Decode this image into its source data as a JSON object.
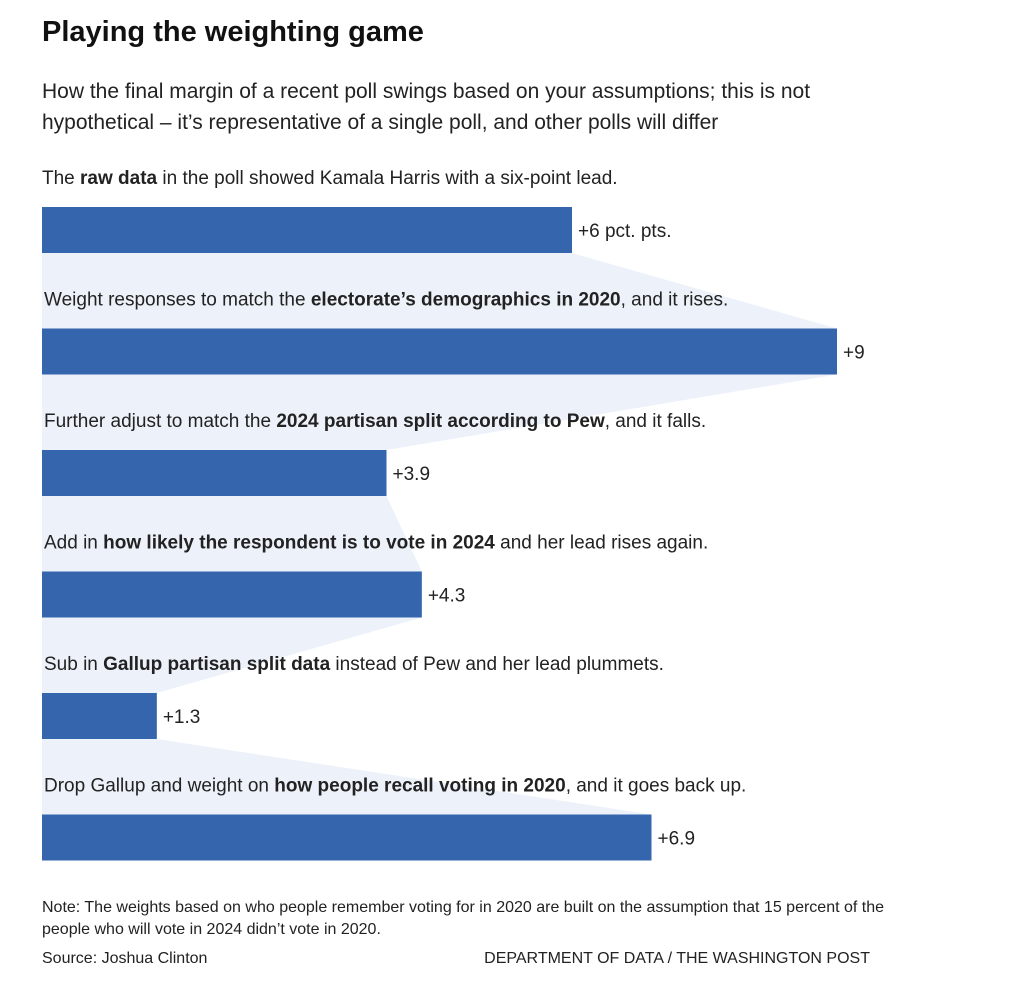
{
  "title": "Playing the weighting game",
  "subtitle": "How the final margin of a recent poll swings based on your assumptions; this is not hypothetical – it’s representative of a single poll, and other polls will differ",
  "note": "Note: The weights based on who people remember voting for in 2020 are built on the assumption that 15 percent of the people who will vote in 2024 didn’t vote in 2020.",
  "source": "Source: Joshua Clinton",
  "credit": "DEPARTMENT OF DATA / THE WASHINGTON POST",
  "colors": {
    "bar": "#3565ad",
    "connector": "#edf2fa"
  },
  "chart_data": {
    "type": "bar",
    "orientation": "horizontal",
    "xlim": [
      0,
      9
    ],
    "categories": [
      [
        {
          "text": "The "
        },
        {
          "text": "raw data",
          "bold": true
        },
        {
          "text": " in the poll showed Kamala Harris with a  six-point lead."
        }
      ],
      [
        {
          "text": "Weight responses to match the "
        },
        {
          "text": "electorate’s demographics in 2020",
          "bold": true
        },
        {
          "text": ", and it rises."
        }
      ],
      [
        {
          "text": "Further adjust to match the "
        },
        {
          "text": "2024 partisan split according to Pew",
          "bold": true
        },
        {
          "text": ", and it falls."
        }
      ],
      [
        {
          "text": "Add in "
        },
        {
          "text": "how likely the respondent is to vote in 2024",
          "bold": true
        },
        {
          "text": " and her lead rises again."
        }
      ],
      [
        {
          "text": "Sub in "
        },
        {
          "text": "Gallup partisan split data",
          "bold": true
        },
        {
          "text": " instead of Pew and her lead plummets."
        }
      ],
      [
        {
          "text": "Drop Gallup and weight on "
        },
        {
          "text": "how people recall voting in 2020",
          "bold": true
        },
        {
          "text": ", and it goes back up."
        }
      ]
    ],
    "values": [
      6,
      9,
      3.9,
      4.3,
      1.3,
      6.9
    ],
    "value_labels": [
      "+6 pct. pts.",
      "+9",
      "+3.9",
      "+4.3",
      "+1.3",
      "+6.9"
    ]
  }
}
